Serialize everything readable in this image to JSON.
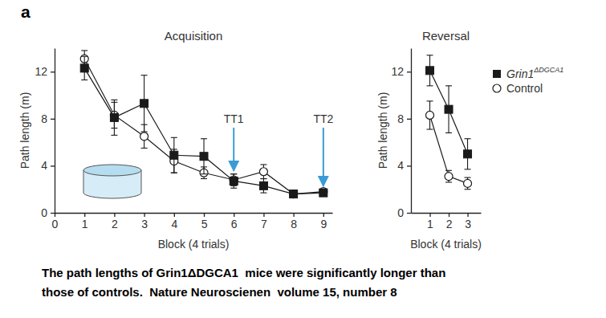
{
  "panel_label": "a",
  "chart_data": [
    {
      "type": "line",
      "title": "Acquisition",
      "x_label": "Block (4 trials)",
      "y_label": "Path length (m)",
      "x": [
        1,
        2,
        3,
        4,
        5,
        6,
        7,
        8,
        9
      ],
      "xlim": [
        0,
        9.3
      ],
      "xticks": [
        0,
        1,
        2,
        3,
        4,
        5,
        6,
        7,
        8,
        9
      ],
      "ylim": [
        0,
        14
      ],
      "yticks": [
        0,
        4,
        8,
        12
      ],
      "series": [
        {
          "color": "#1a1a1a",
          "marker": "square",
          "values": [
            12.3,
            8.1,
            9.3,
            4.9,
            4.8,
            2.7,
            2.3,
            1.6,
            1.7
          ],
          "errors": [
            1.0,
            1.5,
            2.4,
            1.5,
            1.5,
            0.6,
            0.6,
            0.2,
            0.3
          ]
        },
        {
          "color": "#1a1a1a",
          "marker": "open_circle",
          "values": [
            13.1,
            8.3,
            6.5,
            4.4,
            3.4,
            2.8,
            3.5,
            1.6,
            1.8
          ],
          "errors": [
            0.7,
            1.1,
            1.0,
            1.0,
            0.5,
            0.5,
            0.6,
            0.2,
            0.2
          ]
        }
      ],
      "annotations": [
        {
          "text": "TT1",
          "x": 6,
          "color": "#3b9bd6"
        },
        {
          "text": "TT2",
          "x": 9,
          "color": "#3b9bd6"
        }
      ]
    },
    {
      "type": "line",
      "title": "Reversal",
      "x_label": "Block (4 trials)",
      "y_label": "Path length (m)",
      "x": [
        1,
        2,
        3
      ],
      "xlim": [
        0,
        3.7
      ],
      "xticks": [
        1,
        2,
        3
      ],
      "ylim": [
        0,
        14
      ],
      "yticks": [
        0,
        4,
        8,
        12
      ],
      "legend": "right",
      "series": [
        {
          "name": "Grin1ΔDGCA1",
          "color": "#1a1a1a",
          "marker": "square",
          "values": [
            12.1,
            8.8,
            5.0
          ],
          "errors": [
            1.3,
            2.0,
            1.3
          ]
        },
        {
          "name": "Control",
          "color": "#1a1a1a",
          "marker": "open_circle",
          "values": [
            8.3,
            3.1,
            2.5
          ],
          "errors": [
            1.2,
            0.5,
            0.5
          ]
        }
      ]
    }
  ],
  "caption": [
    "The path lengths of Grin1ΔDGCA1  mice were significantly longer than",
    "those of controls.  Nature Neuroscienen  volume 15, number 8"
  ]
}
